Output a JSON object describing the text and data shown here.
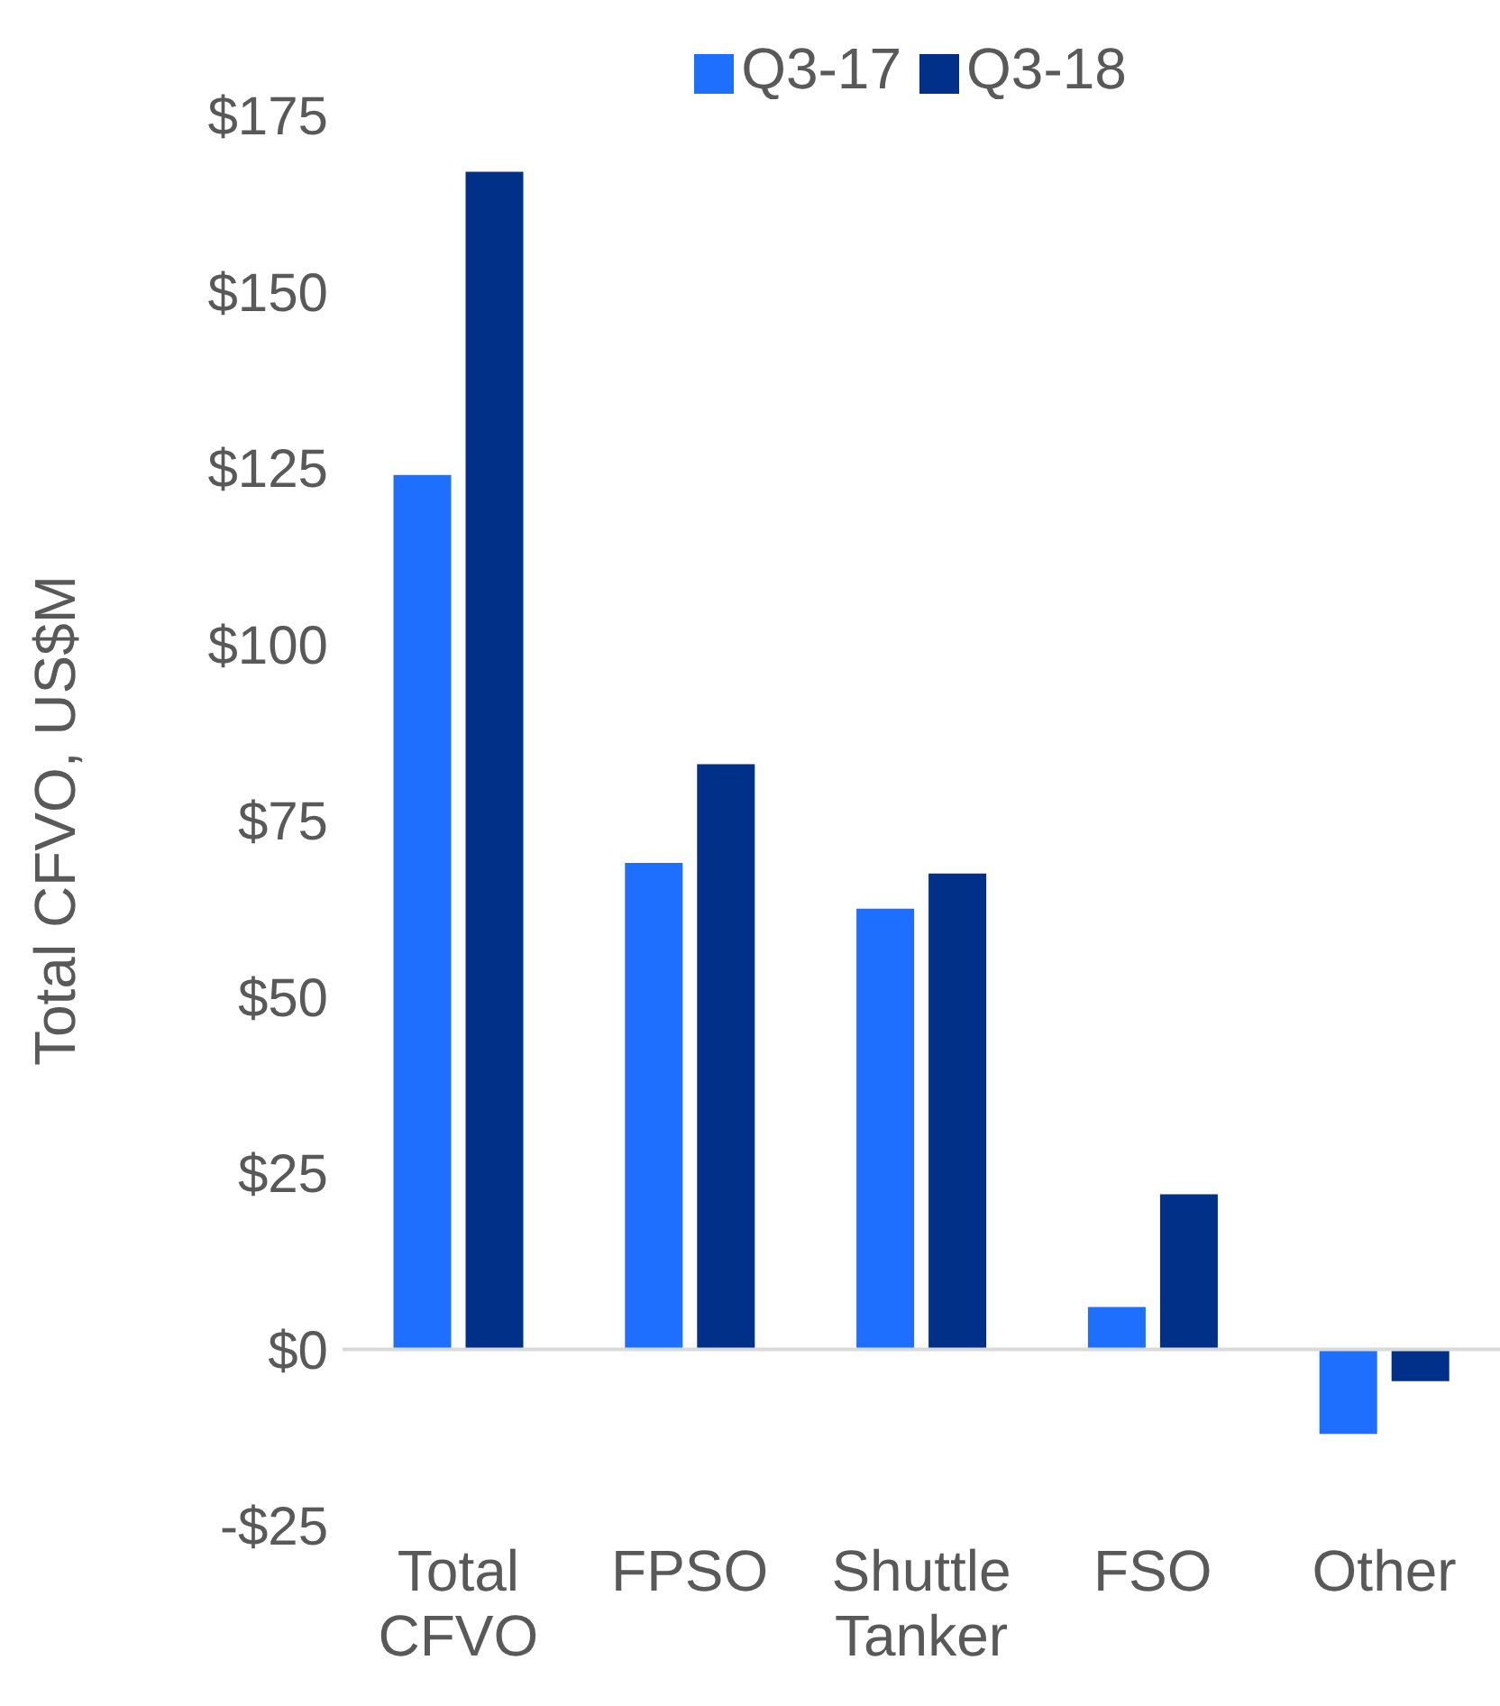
{
  "chart_data": {
    "type": "bar",
    "ylabel": "Total CFVO, US$M",
    "categories": [
      "Total CFVO",
      "FPSO",
      "Shuttle Tanker",
      "FSO",
      "Other"
    ],
    "series": [
      {
        "name": "Q3-17",
        "color": "#1f6fff",
        "values": [
          124,
          69,
          62.5,
          6,
          -12
        ]
      },
      {
        "name": "Q3-18",
        "color": "#003087",
        "values": [
          167,
          83,
          67.5,
          22,
          -4.5
        ]
      }
    ],
    "ylim": [
      -25,
      175
    ],
    "yticks": [
      {
        "value": -25,
        "label": "-$25"
      },
      {
        "value": 0,
        "label": "$0"
      },
      {
        "value": 25,
        "label": "$25"
      },
      {
        "value": 50,
        "label": "$50"
      },
      {
        "value": 75,
        "label": "$75"
      },
      {
        "value": 100,
        "label": "$100"
      },
      {
        "value": 125,
        "label": "$125"
      },
      {
        "value": 150,
        "label": "$150"
      },
      {
        "value": 175,
        "label": "$175"
      }
    ],
    "ref_lines": [
      {
        "axis": "y",
        "value": 0,
        "color": "#d9d9d9"
      }
    ],
    "legend": "top",
    "grid": false
  }
}
